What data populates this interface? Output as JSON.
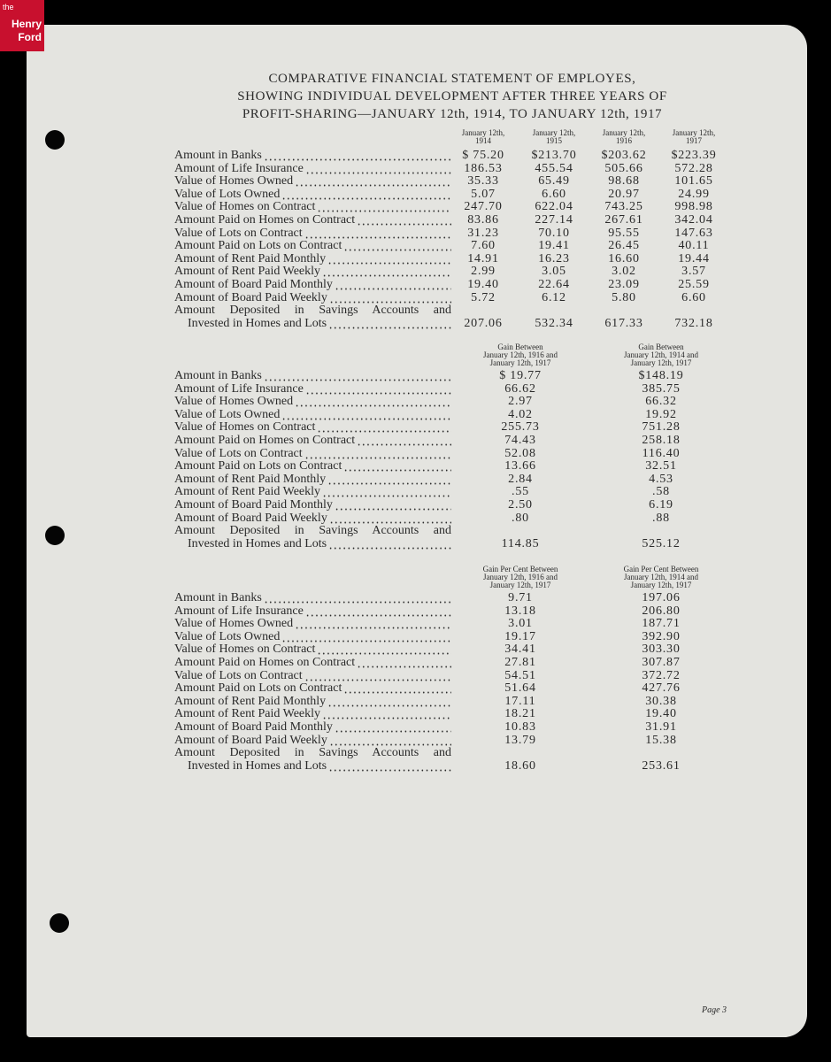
{
  "logo": {
    "lines": [
      "the",
      "Henry",
      "Ford"
    ]
  },
  "title": {
    "lines": [
      "COMPARATIVE FINANCIAL STATEMENT OF EMPLOYES,",
      "SHOWING INDIVIDUAL DEVELOPMENT AFTER THREE YEARS OF",
      "PROFIT-SHARING—JANUARY 12th, 1914, TO JANUARY 12th, 1917"
    ]
  },
  "tables": [
    {
      "headers": [
        [
          "January 12th,",
          "1914"
        ],
        [
          "January 12th,",
          "1915"
        ],
        [
          "January 12th,",
          "1916"
        ],
        [
          "January 12th,",
          "1917"
        ]
      ],
      "rows": [
        {
          "label": [
            "Amount in Banks"
          ],
          "values": [
            "$ 75.20",
            "$213.70",
            "$203.62",
            "$223.39"
          ]
        },
        {
          "label": [
            "Amount of Life Insurance"
          ],
          "values": [
            "186.53",
            "455.54",
            "505.66",
            "572.28"
          ]
        },
        {
          "label": [
            "Value of Homes Owned"
          ],
          "values": [
            "35.33",
            "65.49",
            "98.68",
            "101.65"
          ]
        },
        {
          "label": [
            "Value of Lots Owned"
          ],
          "values": [
            "5.07",
            "6.60",
            "20.97",
            "24.99"
          ]
        },
        {
          "label": [
            "Value of Homes on Contract"
          ],
          "values": [
            "247.70",
            "622.04",
            "743.25",
            "998.98"
          ]
        },
        {
          "label": [
            "Amount Paid on Homes on Contract"
          ],
          "values": [
            "83.86",
            "227.14",
            "267.61",
            "342.04"
          ]
        },
        {
          "label": [
            "Value of Lots on Contract"
          ],
          "values": [
            "31.23",
            "70.10",
            "95.55",
            "147.63"
          ]
        },
        {
          "label": [
            "Amount Paid on Lots on Contract"
          ],
          "values": [
            "7.60",
            "19.41",
            "26.45",
            "40.11"
          ]
        },
        {
          "label": [
            "Amount of Rent Paid Monthly"
          ],
          "values": [
            "14.91",
            "16.23",
            "16.60",
            "19.44"
          ]
        },
        {
          "label": [
            "Amount of Rent Paid Weekly"
          ],
          "values": [
            "2.99",
            "3.05",
            "3.02",
            "3.57"
          ]
        },
        {
          "label": [
            "Amount of Board Paid Monthly"
          ],
          "values": [
            "19.40",
            "22.64",
            "23.09",
            "25.59"
          ]
        },
        {
          "label": [
            "Amount of Board Paid Weekly"
          ],
          "values": [
            "5.72",
            "6.12",
            "5.80",
            "6.60"
          ]
        },
        {
          "label": [
            "Amount Deposited in Savings Accounts and",
            "Invested in Homes and Lots"
          ],
          "values": [
            "207.06",
            "532.34",
            "617.33",
            "732.18"
          ]
        }
      ]
    },
    {
      "headers": [
        [
          "Gain Between",
          "January 12th, 1916 and",
          "January 12th, 1917"
        ],
        [
          "Gain Between",
          "January 12th, 1914 and",
          "January 12th, 1917"
        ]
      ],
      "rows": [
        {
          "label": [
            "Amount in Banks"
          ],
          "values": [
            "$ 19.77",
            "$148.19"
          ]
        },
        {
          "label": [
            "Amount of Life Insurance"
          ],
          "values": [
            "66.62",
            "385.75"
          ]
        },
        {
          "label": [
            "Value of Homes Owned"
          ],
          "values": [
            "2.97",
            "66.32"
          ]
        },
        {
          "label": [
            "Value of Lots Owned"
          ],
          "values": [
            "4.02",
            "19.92"
          ]
        },
        {
          "label": [
            "Value of Homes on Contract"
          ],
          "values": [
            "255.73",
            "751.28"
          ]
        },
        {
          "label": [
            "Amount Paid on Homes on Contract"
          ],
          "values": [
            "74.43",
            "258.18"
          ]
        },
        {
          "label": [
            "Value of Lots on Contract"
          ],
          "values": [
            "52.08",
            "116.40"
          ]
        },
        {
          "label": [
            "Amount Paid on Lots on Contract"
          ],
          "values": [
            "13.66",
            "32.51"
          ]
        },
        {
          "label": [
            "Amount of Rent Paid Monthly"
          ],
          "values": [
            "2.84",
            "4.53"
          ]
        },
        {
          "label": [
            "Amount of Rent Paid Weekly"
          ],
          "values": [
            ".55",
            ".58"
          ]
        },
        {
          "label": [
            "Amount of Board Paid Monthly"
          ],
          "values": [
            "2.50",
            "6.19"
          ]
        },
        {
          "label": [
            "Amount of Board Paid Weekly"
          ],
          "values": [
            ".80",
            ".88"
          ]
        },
        {
          "label": [
            "Amount Deposited in Savings Accounts and",
            "Invested in Homes and Lots"
          ],
          "values": [
            "114.85",
            "525.12"
          ]
        }
      ]
    },
    {
      "headers": [
        [
          "Gain Per Cent Between",
          "January 12th, 1916 and",
          "January 12th, 1917"
        ],
        [
          "Gain Per Cent Between",
          "January 12th, 1914 and",
          "January 12th, 1917"
        ]
      ],
      "rows": [
        {
          "label": [
            "Amount in Banks"
          ],
          "values": [
            "9.71",
            "197.06"
          ]
        },
        {
          "label": [
            "Amount of Life Insurance"
          ],
          "values": [
            "13.18",
            "206.80"
          ]
        },
        {
          "label": [
            "Value of Homes Owned"
          ],
          "values": [
            "3.01",
            "187.71"
          ]
        },
        {
          "label": [
            "Value of Lots Owned"
          ],
          "values": [
            "19.17",
            "392.90"
          ]
        },
        {
          "label": [
            "Value of Homes on Contract"
          ],
          "values": [
            "34.41",
            "303.30"
          ]
        },
        {
          "label": [
            "Amount Paid on Homes on Contract"
          ],
          "values": [
            "27.81",
            "307.87"
          ]
        },
        {
          "label": [
            "Value of Lots on Contract"
          ],
          "values": [
            "54.51",
            "372.72"
          ]
        },
        {
          "label": [
            "Amount Paid on Lots on Contract"
          ],
          "values": [
            "51.64",
            "427.76"
          ]
        },
        {
          "label": [
            "Amount of Rent Paid Monthly"
          ],
          "values": [
            "17.11",
            "30.38"
          ]
        },
        {
          "label": [
            "Amount of Rent Paid Weekly"
          ],
          "values": [
            "18.21",
            "19.40"
          ]
        },
        {
          "label": [
            "Amount of Board Paid Monthly"
          ],
          "values": [
            "10.83",
            "31.91"
          ]
        },
        {
          "label": [
            "Amount of Board Paid Weekly"
          ],
          "values": [
            "13.79",
            "15.38"
          ]
        },
        {
          "label": [
            "Amount Deposited in Savings Accounts and",
            "Invested in Homes and Lots"
          ],
          "values": [
            "18.60",
            "253.61"
          ]
        }
      ]
    }
  ],
  "footer": {
    "page": "Page 3"
  }
}
